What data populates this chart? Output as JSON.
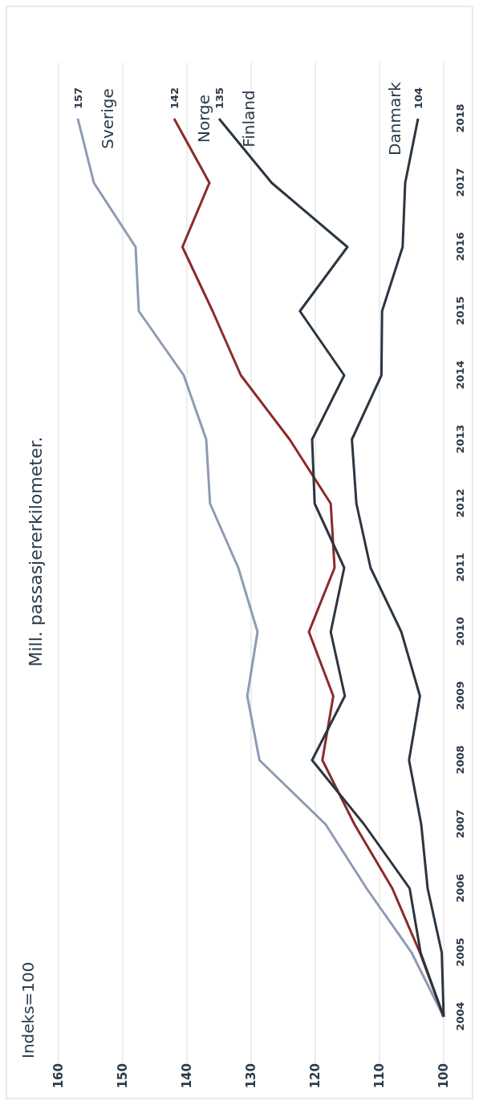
{
  "chart_data": {
    "type": "line",
    "orientation": "horizontal",
    "title": "Mill. passasjererkilometer.",
    "annotations": [
      "Indeks=100"
    ],
    "categories": [
      "2018",
      "2017",
      "2016",
      "2015",
      "2014",
      "2013",
      "2012",
      "2011",
      "2010",
      "2009",
      "2008",
      "2007",
      "2006",
      "2005",
      "2004"
    ],
    "series": [
      {
        "name": "Sverige",
        "color": "#8e9bb5",
        "values": [
          157,
          154.5,
          148,
          147.5,
          140.5,
          137,
          136.4,
          132,
          129,
          130.6,
          128.7,
          118.4,
          112,
          105,
          100
        ],
        "value_labels": [
          "157",
          null,
          null,
          null,
          null,
          null,
          null,
          null,
          null,
          null,
          null,
          null,
          null,
          null,
          null
        ]
      },
      {
        "name": "Norge",
        "color": "#8b2a2a",
        "values": [
          142,
          136.5,
          140.7,
          136,
          131.6,
          124,
          117.6,
          117,
          121,
          117.2,
          118.9,
          113.9,
          108,
          103.7,
          100
        ],
        "value_labels": [
          "142",
          null,
          null,
          null,
          null,
          null,
          null,
          null,
          null,
          null,
          null,
          null,
          null,
          null,
          null
        ]
      },
      {
        "name": "Finland",
        "color": "#2b3640",
        "values": [
          135,
          126.8,
          115,
          122.4,
          115.5,
          120.5,
          120.1,
          115.5,
          117.6,
          115.4,
          120.5,
          112.4,
          105.3,
          103.6,
          100
        ],
        "value_labels": [
          "135",
          null,
          null,
          null,
          null,
          null,
          null,
          null,
          null,
          null,
          null,
          null,
          null,
          null,
          null
        ]
      },
      {
        "name": "Danmark",
        "color": "#2b3640",
        "values": [
          104,
          106,
          106.4,
          109.6,
          109.7,
          114.3,
          113.6,
          111.4,
          106.6,
          103.7,
          105.4,
          103.5,
          102.5,
          100.3,
          100
        ],
        "value_labels": [
          "104",
          null,
          null,
          null,
          null,
          null,
          null,
          null,
          null,
          null,
          null,
          null,
          null,
          null,
          null
        ]
      }
    ],
    "xlim": [
      160,
      100
    ],
    "xticks": [
      160,
      150,
      140,
      130,
      120,
      110,
      100
    ],
    "grid": "x",
    "marker": "none",
    "line_style": "solid"
  }
}
